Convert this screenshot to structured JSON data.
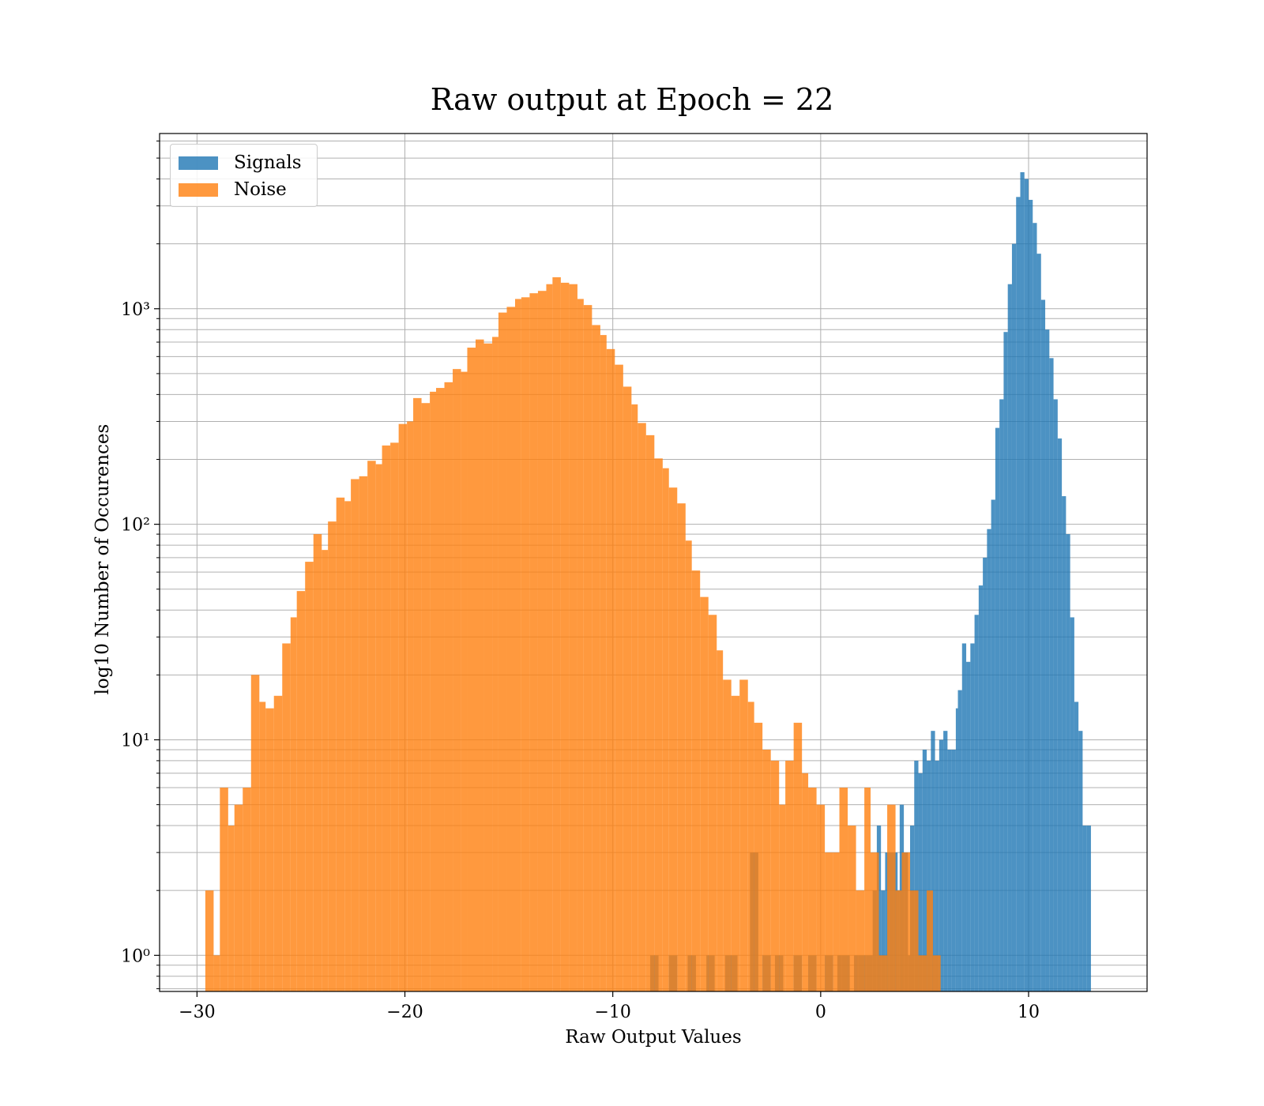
{
  "title": "Raw output at Epoch = 22",
  "xlabel": "Raw Output Values",
  "ylabel": "log10 Number of Occurences",
  "colors": {
    "signals": "#1f77b4",
    "noise": "#ff7f0e",
    "grid": "#b0b0b0"
  },
  "chart_data": {
    "type": "histogram",
    "title": "Raw output at Epoch = 22",
    "xlabel": "Raw Output Values",
    "ylabel": "log10 Number of Occurences",
    "xlim": [
      -31.8,
      15.7
    ],
    "ylim": [
      0.68,
      6500
    ],
    "yscale": "log",
    "grid": true,
    "legend_position": "top-left",
    "x_ticks": [
      -30,
      -20,
      -10,
      0,
      10
    ],
    "x_tick_labels": [
      "−30",
      "−20",
      "−10",
      "0",
      "10"
    ],
    "y_ticks": [
      1,
      10,
      100,
      1000
    ],
    "y_tick_labels": [
      "10⁰",
      "10¹",
      "10²",
      "10³"
    ],
    "series": [
      {
        "name": "Signals",
        "color": "#1f77b4",
        "bins": [
          [
            -8.2,
            1
          ],
          [
            -7.3,
            1
          ],
          [
            -6.4,
            1
          ],
          [
            -5.5,
            1
          ],
          [
            -4.6,
            1
          ],
          [
            -4.4,
            1
          ],
          [
            -3.4,
            3
          ],
          [
            -2.8,
            1
          ],
          [
            -2.2,
            1
          ],
          [
            -1.3,
            1
          ],
          [
            -0.6,
            1
          ],
          [
            0.2,
            1
          ],
          [
            0.8,
            1
          ],
          [
            1.0,
            1
          ],
          [
            1.6,
            1
          ],
          [
            1.8,
            1
          ],
          [
            2.2,
            1
          ],
          [
            2.5,
            2
          ],
          [
            2.7,
            4
          ],
          [
            2.9,
            2
          ],
          [
            3.1,
            3
          ],
          [
            3.3,
            3
          ],
          [
            3.5,
            3
          ],
          [
            3.7,
            2
          ],
          [
            3.8,
            5
          ],
          [
            4.0,
            3
          ],
          [
            4.2,
            1
          ],
          [
            4.3,
            4
          ],
          [
            4.5,
            8
          ],
          [
            4.7,
            7
          ],
          [
            4.9,
            9
          ],
          [
            5.1,
            8
          ],
          [
            5.3,
            11
          ],
          [
            5.5,
            8
          ],
          [
            5.7,
            10
          ],
          [
            5.9,
            11
          ],
          [
            6.1,
            9
          ],
          [
            6.3,
            9
          ],
          [
            6.5,
            14
          ],
          [
            6.6,
            17
          ],
          [
            6.8,
            28
          ],
          [
            7.0,
            23
          ],
          [
            7.2,
            28
          ],
          [
            7.4,
            38
          ],
          [
            7.6,
            52
          ],
          [
            7.8,
            70
          ],
          [
            8.0,
            95
          ],
          [
            8.2,
            130
          ],
          [
            8.4,
            280
          ],
          [
            8.6,
            380
          ],
          [
            8.8,
            780
          ],
          [
            9.0,
            1300
          ],
          [
            9.2,
            2000
          ],
          [
            9.4,
            3300
          ],
          [
            9.6,
            4300
          ],
          [
            9.8,
            4000
          ],
          [
            10.0,
            3200
          ],
          [
            10.2,
            2500
          ],
          [
            10.4,
            1800
          ],
          [
            10.6,
            1100
          ],
          [
            10.8,
            800
          ],
          [
            11.0,
            590
          ],
          [
            11.2,
            380
          ],
          [
            11.4,
            250
          ],
          [
            11.6,
            135
          ],
          [
            11.8,
            90
          ],
          [
            12.0,
            37
          ],
          [
            12.2,
            15
          ],
          [
            12.4,
            11
          ],
          [
            12.6,
            4
          ],
          [
            12.8,
            4
          ]
        ]
      },
      {
        "name": "Noise",
        "color": "#ff7f0e",
        "bins": [
          [
            -29.6,
            2
          ],
          [
            -29.2,
            1
          ],
          [
            -28.9,
            6
          ],
          [
            -28.5,
            4
          ],
          [
            -28.2,
            5
          ],
          [
            -27.8,
            6
          ],
          [
            -27.4,
            20
          ],
          [
            -27.0,
            15
          ],
          [
            -26.7,
            14
          ],
          [
            -26.3,
            16
          ],
          [
            -25.9,
            28
          ],
          [
            -25.5,
            37
          ],
          [
            -25.2,
            49
          ],
          [
            -24.8,
            67
          ],
          [
            -24.4,
            90
          ],
          [
            -24.0,
            76
          ],
          [
            -23.7,
            103
          ],
          [
            -23.3,
            133
          ],
          [
            -22.9,
            128
          ],
          [
            -22.6,
            162
          ],
          [
            -22.2,
            167
          ],
          [
            -21.8,
            197
          ],
          [
            -21.4,
            190
          ],
          [
            -21.1,
            232
          ],
          [
            -20.7,
            239
          ],
          [
            -20.3,
            292
          ],
          [
            -19.9,
            300
          ],
          [
            -19.6,
            385
          ],
          [
            -19.2,
            365
          ],
          [
            -18.8,
            412
          ],
          [
            -18.5,
            429
          ],
          [
            -18.1,
            456
          ],
          [
            -17.7,
            525
          ],
          [
            -17.3,
            510
          ],
          [
            -17.0,
            660
          ],
          [
            -16.6,
            720
          ],
          [
            -16.2,
            690
          ],
          [
            -15.8,
            740
          ],
          [
            -15.5,
            960
          ],
          [
            -15.1,
            1020
          ],
          [
            -14.7,
            1110
          ],
          [
            -14.4,
            1130
          ],
          [
            -14.0,
            1180
          ],
          [
            -13.6,
            1210
          ],
          [
            -13.2,
            1300
          ],
          [
            -12.9,
            1400
          ],
          [
            -12.5,
            1320
          ],
          [
            -12.1,
            1300
          ],
          [
            -11.7,
            1110
          ],
          [
            -11.4,
            1040
          ],
          [
            -11.0,
            840
          ],
          [
            -10.6,
            755
          ],
          [
            -10.3,
            650
          ],
          [
            -9.9,
            550
          ],
          [
            -9.5,
            435
          ],
          [
            -9.1,
            360
          ],
          [
            -8.8,
            295
          ],
          [
            -8.4,
            259
          ],
          [
            -8.0,
            202
          ],
          [
            -7.6,
            182
          ],
          [
            -7.3,
            148
          ],
          [
            -6.9,
            125
          ],
          [
            -6.5,
            84
          ],
          [
            -6.2,
            61
          ],
          [
            -5.8,
            46
          ],
          [
            -5.4,
            38
          ],
          [
            -5.0,
            26
          ],
          [
            -4.7,
            19
          ],
          [
            -4.3,
            16
          ],
          [
            -3.9,
            19
          ],
          [
            -3.5,
            15
          ],
          [
            -3.2,
            12
          ],
          [
            -2.8,
            9
          ],
          [
            -2.4,
            8
          ],
          [
            -2.0,
            5
          ],
          [
            -1.7,
            8
          ],
          [
            -1.3,
            12
          ],
          [
            -0.9,
            7
          ],
          [
            -0.6,
            6
          ],
          [
            -0.2,
            5
          ],
          [
            0.2,
            3
          ],
          [
            0.6,
            3
          ],
          [
            0.9,
            6
          ],
          [
            1.3,
            4
          ],
          [
            1.7,
            2
          ],
          [
            2.1,
            6
          ],
          [
            2.4,
            3
          ],
          [
            2.8,
            1
          ],
          [
            3.2,
            5
          ],
          [
            3.6,
            2
          ],
          [
            3.9,
            3
          ],
          [
            4.3,
            2
          ],
          [
            4.7,
            1
          ],
          [
            5.1,
            2
          ],
          [
            5.4,
            1
          ]
        ]
      }
    ]
  }
}
